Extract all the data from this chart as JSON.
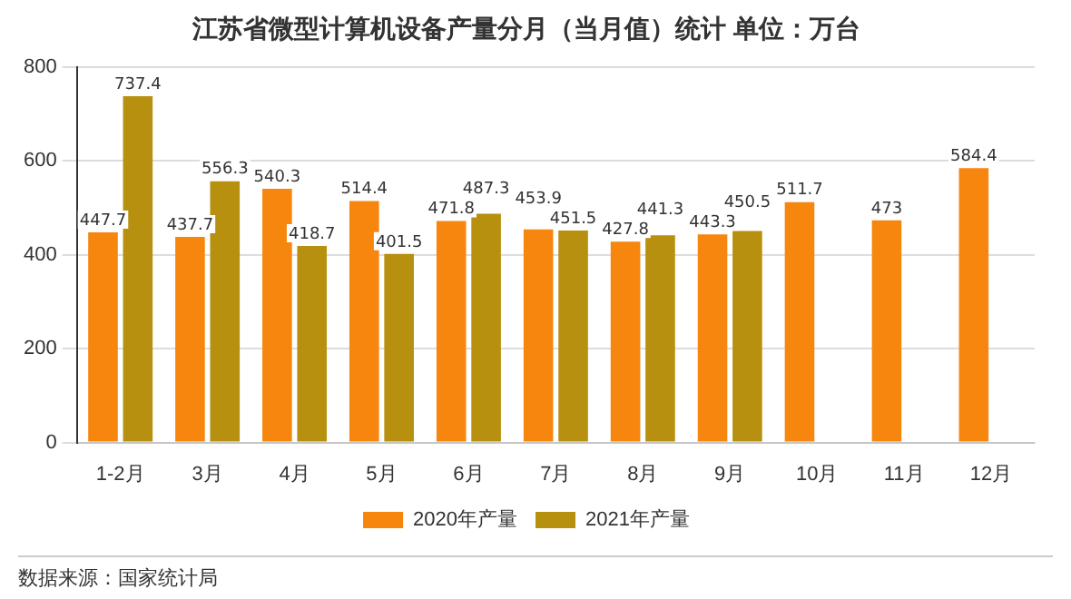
{
  "chart_data": {
    "type": "bar",
    "title": "江苏省微型计算机设备产量分月（当月值）统计 单位：万台",
    "categories": [
      "1-2月",
      "3月",
      "4月",
      "5月",
      "6月",
      "7月",
      "8月",
      "9月",
      "10月",
      "11月",
      "12月"
    ],
    "series": [
      {
        "name": "2020年产量",
        "color": "#f7860f",
        "values": [
          447.7,
          437.7,
          540.3,
          514.4,
          471.8,
          453.9,
          427.8,
          443.3,
          511.7,
          473,
          584.4
        ]
      },
      {
        "name": "2021年产量",
        "color": "#b8900f",
        "values": [
          737.4,
          556.3,
          418.7,
          401.5,
          487.3,
          451.5,
          441.3,
          450.5,
          null,
          null,
          null
        ]
      }
    ],
    "ylim": [
      0,
      800
    ],
    "yticks": [
      0,
      200,
      400,
      600,
      800
    ],
    "grid": "y",
    "legend": "bottom",
    "data_labels": true,
    "annotations": [
      "数据来源：国家统计局"
    ]
  }
}
